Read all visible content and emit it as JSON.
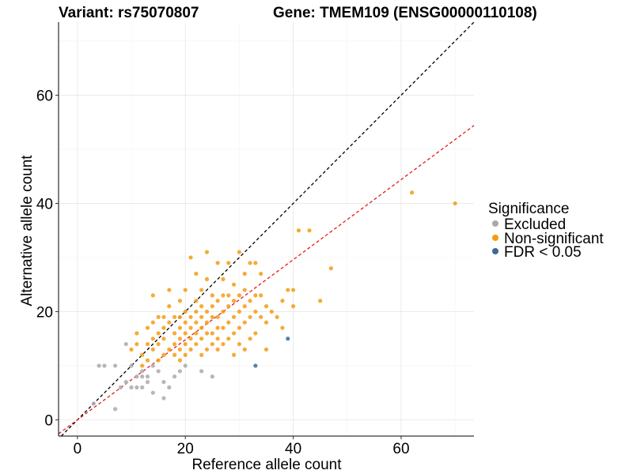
{
  "chart_data": {
    "type": "scatter",
    "title_left": "Variant: rs75070807",
    "title_right": "Gene: TMEM109 (ENSG00000110108)",
    "xlabel": "Reference allele count",
    "ylabel": "Alternative allele count",
    "xlim": [
      -3.5,
      73.5
    ],
    "ylim": [
      -3,
      73.5
    ],
    "xticks": [
      0,
      20,
      40,
      60
    ],
    "yticks": [
      0,
      20,
      40,
      60
    ],
    "grid": true,
    "legend": {
      "title": "Significance",
      "placement": "right",
      "entries": [
        {
          "label": "Excluded",
          "color": "#aaaaaa"
        },
        {
          "label": "Non-significant",
          "color": "#f39c12"
        },
        {
          "label": "FDR < 0.05",
          "color": "#3a6a99"
        }
      ]
    },
    "reference_lines": [
      {
        "style": "dashed",
        "color": "#000000",
        "slope": 1.0,
        "intercept": 0
      },
      {
        "style": "dashed",
        "color": "#e41a1c",
        "slope": 0.74,
        "intercept": 0
      }
    ],
    "series": [
      {
        "name": "Excluded",
        "color": "#aaaaaa",
        "points": [
          [
            3,
            3
          ],
          [
            4,
            10
          ],
          [
            5,
            10
          ],
          [
            7,
            10
          ],
          [
            7,
            2
          ],
          [
            8,
            6
          ],
          [
            9,
            7
          ],
          [
            9,
            14
          ],
          [
            10,
            6
          ],
          [
            11,
            6
          ],
          [
            11,
            8
          ],
          [
            12,
            6
          ],
          [
            12,
            9
          ],
          [
            13,
            7
          ],
          [
            13,
            8
          ],
          [
            14,
            5
          ],
          [
            14,
            10
          ],
          [
            15,
            9
          ],
          [
            16,
            4
          ],
          [
            16,
            7
          ],
          [
            17,
            6
          ],
          [
            18,
            8
          ],
          [
            19,
            9
          ],
          [
            20,
            10
          ],
          [
            23,
            9
          ],
          [
            25,
            8
          ],
          [
            10,
            10
          ],
          [
            12,
            8
          ]
        ]
      },
      {
        "name": "Non-significant",
        "color": "#f39c12",
        "points": [
          [
            10,
            13
          ],
          [
            11,
            14
          ],
          [
            11,
            16
          ],
          [
            12,
            10
          ],
          [
            12,
            12
          ],
          [
            13,
            11
          ],
          [
            13,
            14
          ],
          [
            13,
            17
          ],
          [
            14,
            13
          ],
          [
            14,
            15
          ],
          [
            14,
            18
          ],
          [
            14,
            23
          ],
          [
            15,
            11
          ],
          [
            15,
            14
          ],
          [
            15,
            16
          ],
          [
            15,
            19
          ],
          [
            16,
            12
          ],
          [
            16,
            15
          ],
          [
            16,
            17
          ],
          [
            16,
            19
          ],
          [
            17,
            13
          ],
          [
            17,
            18
          ],
          [
            17,
            21
          ],
          [
            18,
            12
          ],
          [
            18,
            14
          ],
          [
            18,
            16
          ],
          [
            18,
            19
          ],
          [
            19,
            11
          ],
          [
            19,
            13
          ],
          [
            19,
            15
          ],
          [
            19,
            17
          ],
          [
            19,
            19
          ],
          [
            19,
            22
          ],
          [
            20,
            12
          ],
          [
            20,
            14
          ],
          [
            20,
            16
          ],
          [
            20,
            18
          ],
          [
            20,
            20
          ],
          [
            20,
            24
          ],
          [
            21,
            13
          ],
          [
            21,
            15
          ],
          [
            21,
            17
          ],
          [
            21,
            19
          ],
          [
            21,
            30
          ],
          [
            22,
            14
          ],
          [
            22,
            16
          ],
          [
            22,
            18
          ],
          [
            22,
            20
          ],
          [
            22,
            22
          ],
          [
            23,
            12
          ],
          [
            23,
            15
          ],
          [
            23,
            17
          ],
          [
            23,
            19
          ],
          [
            23,
            21
          ],
          [
            23,
            24
          ],
          [
            24,
            13
          ],
          [
            24,
            16
          ],
          [
            24,
            18
          ],
          [
            24,
            20
          ],
          [
            24,
            26
          ],
          [
            24,
            31
          ],
          [
            25,
            14
          ],
          [
            25,
            16
          ],
          [
            25,
            19
          ],
          [
            25,
            21
          ],
          [
            25,
            23
          ],
          [
            26,
            13
          ],
          [
            26,
            15
          ],
          [
            26,
            17
          ],
          [
            26,
            19
          ],
          [
            26,
            22
          ],
          [
            26,
            29
          ],
          [
            27,
            14
          ],
          [
            27,
            17
          ],
          [
            27,
            20
          ],
          [
            27,
            23
          ],
          [
            27,
            26
          ],
          [
            28,
            15
          ],
          [
            28,
            18
          ],
          [
            28,
            21
          ],
          [
            28,
            23
          ],
          [
            29,
            12
          ],
          [
            29,
            16
          ],
          [
            29,
            19
          ],
          [
            29,
            22
          ],
          [
            29,
            25
          ],
          [
            30,
            14
          ],
          [
            30,
            17
          ],
          [
            30,
            20
          ],
          [
            30,
            23
          ],
          [
            30,
            31
          ],
          [
            31,
            13
          ],
          [
            31,
            18
          ],
          [
            31,
            21
          ],
          [
            31,
            24
          ],
          [
            31,
            27
          ],
          [
            32,
            15
          ],
          [
            32,
            19
          ],
          [
            32,
            22
          ],
          [
            32,
            29
          ],
          [
            33,
            16
          ],
          [
            33,
            20
          ],
          [
            33,
            23
          ],
          [
            33,
            29
          ],
          [
            34,
            19
          ],
          [
            34,
            23
          ],
          [
            34,
            27
          ],
          [
            35,
            13
          ],
          [
            35,
            18
          ],
          [
            35,
            21
          ],
          [
            36,
            20
          ],
          [
            37,
            19
          ],
          [
            38,
            17
          ],
          [
            38,
            22
          ],
          [
            39,
            24
          ],
          [
            40,
            21
          ],
          [
            40,
            24
          ],
          [
            41,
            35
          ],
          [
            43,
            35
          ],
          [
            45,
            22
          ],
          [
            47,
            28
          ],
          [
            62,
            42
          ],
          [
            70,
            40
          ],
          [
            17,
            24
          ],
          [
            22,
            27
          ],
          [
            28,
            29
          ]
        ]
      },
      {
        "name": "FDR < 0.05",
        "color": "#3a6a99",
        "points": [
          [
            33,
            10
          ],
          [
            39,
            15
          ]
        ]
      }
    ]
  }
}
